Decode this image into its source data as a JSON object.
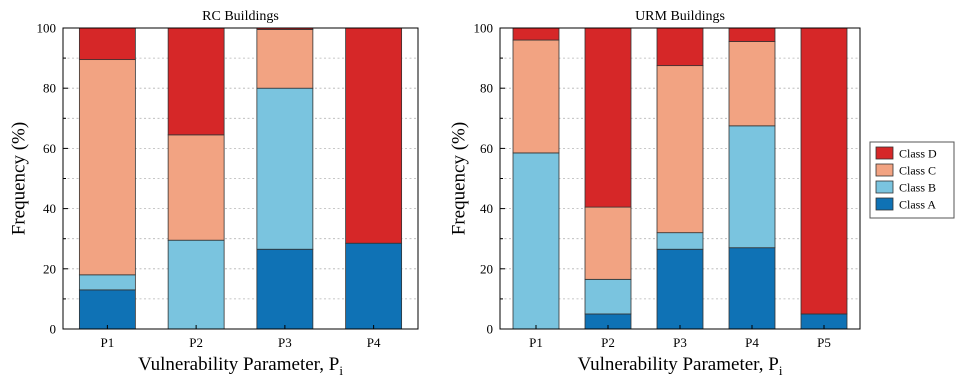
{
  "chart_data": [
    {
      "type": "bar",
      "stacked": true,
      "title": "RC Buildings",
      "xlabel": "Vulnerability Parameter, P",
      "xlabel_subscript": "i",
      "ylabel": "Frequency (%)",
      "ylim": [
        0,
        100
      ],
      "yticks": [
        0,
        20,
        40,
        60,
        80,
        100
      ],
      "grid": true,
      "categories": [
        "P1",
        "P2",
        "P3",
        "P4"
      ],
      "series": [
        {
          "name": "Class A",
          "values": [
            13,
            0,
            26.5,
            28.5
          ]
        },
        {
          "name": "Class B",
          "values": [
            5,
            29.5,
            53.5,
            0
          ]
        },
        {
          "name": "Class C",
          "values": [
            71.5,
            35,
            19.5,
            0
          ]
        },
        {
          "name": "Class D",
          "values": [
            10.5,
            35.5,
            0.5,
            71.5
          ]
        }
      ]
    },
    {
      "type": "bar",
      "stacked": true,
      "title": "URM Buildings",
      "xlabel": "Vulnerability Parameter, P",
      "xlabel_subscript": "i",
      "ylabel": "Frequency (%)",
      "ylim": [
        0,
        100
      ],
      "yticks": [
        0,
        20,
        40,
        60,
        80,
        100
      ],
      "grid": true,
      "categories": [
        "P1",
        "P2",
        "P3",
        "P4",
        "P5"
      ],
      "series": [
        {
          "name": "Class A",
          "values": [
            0,
            5,
            26.5,
            27,
            5
          ]
        },
        {
          "name": "Class B",
          "values": [
            58.5,
            11.5,
            5.5,
            40.5,
            0
          ]
        },
        {
          "name": "Class C",
          "values": [
            37.5,
            24,
            55.5,
            28,
            0
          ]
        },
        {
          "name": "Class D",
          "values": [
            4,
            59.5,
            12.5,
            4.5,
            95
          ]
        }
      ]
    }
  ],
  "legend": {
    "placement": "right",
    "items": [
      {
        "label": "Class D",
        "color": "#d62728"
      },
      {
        "label": "Class C",
        "color": "#f2a382"
      },
      {
        "label": "Class B",
        "color": "#7ac4df"
      },
      {
        "label": "Class A",
        "color": "#0f72b5"
      }
    ]
  },
  "colors": {
    "Class A": "#0f72b5",
    "Class B": "#7ac4df",
    "Class C": "#f2a382",
    "Class D": "#d62728"
  }
}
